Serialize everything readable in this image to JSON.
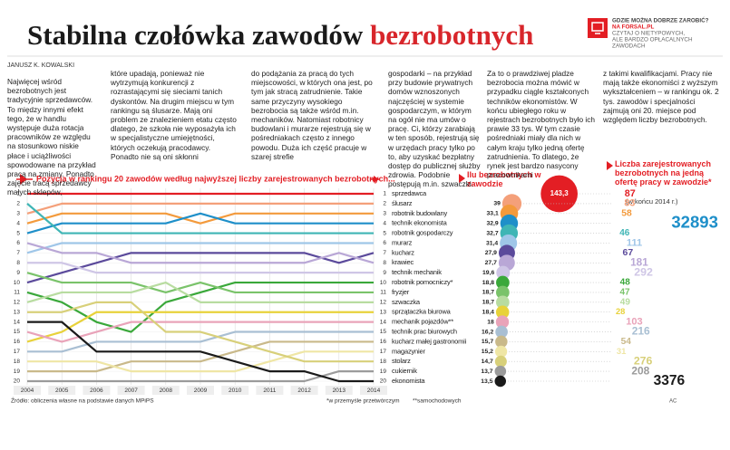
{
  "header": {
    "title_black": "Stabilna czołówka zawodów",
    "title_red": "bezrobotnych"
  },
  "promo": {
    "question": "GDZIE MOŻNA DOBRZE ZAROBIĆ?",
    "site": "NA FORSAL.PL",
    "line1": "CZYTAJ O NIETYPOWYCH,",
    "line2": "ALE BARDZO OPŁACALNYCH",
    "line3": "ZAWODACH"
  },
  "article": {
    "byline": "JANUSZ K. KOWALSKI",
    "columns": [
      "Najwięcej wśród bezrobotnych jest tradycyjnie sprzedawców. To między innymi efekt tego, że w handlu występuje duża rotacja pracowników ze względu na stosunkowo niskie płace i uciążliwości spowodowane na przykład pracą na zmiany. Ponadto zajęcie tracą sprzedawcy małych sklepów,",
      "które upadają, ponieważ nie wytrzymują konkurencji z rozrastającymi się sieciami tanich dyskontów. Na drugim miejscu w tym rankingu są ślusarze. Mają oni problem ze znalezieniem etatu często dlatego, że szkoła nie wyposażyła ich w specjalistyczne umiejętności, których oczekują pracodawcy. Ponadto nie są oni skłonni",
      "do podążania za pracą do tych miejscowości, w których ona jest, po tym jak stracą zatrudnienie. Takie same przyczyny wysokiego bezrobocia są także wśród m.in. mechaników. Natomiast robotnicy budowlani i murarze rejestrują się w pośredniakach często z innego powodu. Duża ich część pracuje w szarej strefie",
      "gospodarki – na przykład przy budowie prywatnych domów wznoszonych najczęściej w systemie gospodarczym, w którym na ogół nie ma umów o pracę. Ci, którzy zarabiają w ten sposób, rejestrują się w urzędach pracy tylko po to, aby uzyskać bezpłatny dostęp do publicznej służby zdrowia. Podobnie postępują m.in. szwaczki.",
      "Za to o prawdziwej pladze bezrobocia można mówić w przypadku ciągle kształconych techników ekonomistów. W końcu ubiegłego roku w rejestrach bezrobotnych było ich prawie 33 tys. W tym czasie pośredniaki miały dla nich w całym kraju tylko jedną ofertę zatrudnienia. To dlatego, że rynek jest bardzo nasycony pracownikami",
      "z takimi kwalifikacjami. Pracy nie mają także ekonomiści z wyższym wykształceniem – w rankingu ok. 2 tys. zawodów i specjalności zajmują oni 20. miejsce pod względem liczby bezrobotnych."
    ]
  },
  "chart_data": [
    {
      "type": "line",
      "title": "Pozycja w rankingu 20 zawodów według najwyższej liczby zarejestrowanych bezrobotnych...",
      "x": [
        2004,
        2005,
        2006,
        2007,
        2008,
        2009,
        2010,
        2011,
        2012,
        2013,
        2014
      ],
      "xlim": [
        2004,
        2014
      ],
      "xticks": [
        2004,
        2005,
        2006,
        2007,
        2008,
        2009,
        2010,
        2011,
        2012,
        2013,
        2014
      ],
      "ylim": [
        20,
        1
      ],
      "yticks": [
        1,
        2,
        3,
        4,
        5,
        6,
        7,
        8,
        9,
        10,
        11,
        12,
        13,
        14,
        15,
        16,
        17,
        18,
        19,
        20
      ],
      "grid": true,
      "series": [
        {
          "name": "sprzedawca",
          "color": "#e31e24",
          "values": [
            1,
            1,
            1,
            1,
            1,
            1,
            1,
            1,
            1,
            1,
            1
          ]
        },
        {
          "name": "ślusarz",
          "color": "#f4a07a",
          "values": [
            3,
            2,
            2,
            2,
            2,
            2,
            2,
            2,
            2,
            2,
            2
          ]
        },
        {
          "name": "robotnik budowlany",
          "color": "#f39a3c",
          "values": [
            4,
            3,
            3,
            3,
            3,
            4,
            3,
            3,
            3,
            3,
            3
          ]
        },
        {
          "name": "technik ekonomista",
          "color": "#1e8fc9",
          "values": [
            5,
            4,
            4,
            4,
            4,
            3,
            4,
            4,
            4,
            4,
            4
          ]
        },
        {
          "name": "robotnik gospodarczy",
          "color": "#3fb5b5",
          "values": [
            2,
            5,
            5,
            5,
            5,
            5,
            5,
            5,
            5,
            5,
            5
          ]
        },
        {
          "name": "murarz",
          "color": "#9fc6e8",
          "values": [
            7,
            6,
            6,
            6,
            6,
            6,
            6,
            6,
            6,
            6,
            6
          ]
        },
        {
          "name": "kucharz",
          "color": "#5b4a9b",
          "values": [
            10,
            9,
            8,
            7,
            7,
            7,
            7,
            7,
            7,
            8,
            7
          ]
        },
        {
          "name": "krawiec",
          "color": "#b9a7d6",
          "values": [
            6,
            7,
            7,
            8,
            8,
            8,
            8,
            8,
            8,
            7,
            8
          ]
        },
        {
          "name": "technik mechanik",
          "color": "#cfc6e6",
          "values": [
            8,
            8,
            9,
            9,
            9,
            9,
            9,
            9,
            9,
            9,
            9
          ]
        },
        {
          "name": "robotnik pomocniczy*",
          "color": "#3aa83a",
          "values": [
            11,
            12,
            14,
            15,
            12,
            11,
            10,
            10,
            10,
            10,
            10
          ]
        },
        {
          "name": "fryzjer",
          "color": "#7ac36a",
          "values": [
            9,
            10,
            10,
            10,
            11,
            10,
            11,
            11,
            11,
            11,
            11
          ]
        },
        {
          "name": "szwaczka",
          "color": "#b8dca0",
          "values": [
            12,
            11,
            11,
            11,
            10,
            12,
            12,
            12,
            12,
            12,
            12
          ]
        },
        {
          "name": "sprzątaczka biurowa",
          "color": "#e8d23a",
          "values": [
            16,
            15,
            13,
            13,
            13,
            13,
            13,
            13,
            13,
            13,
            13
          ]
        },
        {
          "name": "mechanik pojazdów**",
          "color": "#e9a3b9",
          "values": [
            15,
            16,
            15,
            14,
            14,
            14,
            14,
            14,
            14,
            14,
            14
          ]
        },
        {
          "name": "technik prac biurowych",
          "color": "#a9bfd3",
          "values": [
            17,
            17,
            16,
            16,
            16,
            16,
            15,
            15,
            15,
            15,
            15
          ]
        },
        {
          "name": "kucharz małej gastronomii",
          "color": "#c9b98a",
          "values": [
            19,
            19,
            19,
            18,
            18,
            18,
            17,
            16,
            16,
            16,
            16
          ]
        },
        {
          "name": "magazynier",
          "color": "#efe6a5",
          "values": [
            18,
            18,
            18,
            19,
            19,
            19,
            19,
            18,
            17,
            17,
            17
          ]
        },
        {
          "name": "stolarz",
          "color": "#d8d07a",
          "values": [
            13,
            13,
            12,
            12,
            15,
            15,
            16,
            17,
            18,
            18,
            18
          ]
        },
        {
          "name": "cukiernik",
          "color": "#9b9b9b",
          "values": [
            20,
            20,
            20,
            20,
            20,
            20,
            20,
            20,
            20,
            19,
            19
          ]
        },
        {
          "name": "ekonomista",
          "color": "#1a1a1a",
          "values": [
            14,
            14,
            17,
            17,
            17,
            17,
            18,
            19,
            19,
            20,
            20
          ]
        }
      ]
    },
    {
      "type": "bubble",
      "title": "Ilu bezrobotnych w zawodzie",
      "values": [
        143.3,
        39,
        33.1,
        32.9,
        32.7,
        31.4,
        27.9,
        27.7,
        19.6,
        18.8,
        18.7,
        18.7,
        18.4,
        18,
        16.2,
        15.7,
        15.2,
        14.7,
        13.7,
        13.5
      ],
      "value_labels": [
        "143,3",
        "39",
        "33,1",
        "32,9",
        "32,7",
        "31,4",
        "27,9",
        "27,7",
        "19,6",
        "18,8",
        "18,7",
        "18,7",
        "18,4",
        "18",
        "16,2",
        "15,7",
        "15,2",
        "14,7",
        "13,7",
        "13,5"
      ]
    },
    {
      "type": "label",
      "title": "Liczba zarejestrowanych bezrobotnych na jedną ofertę pracy w zawodzie*",
      "subtitle": "(w końcu 2014 r.)",
      "values": [
        87,
        83,
        58,
        32893,
        46,
        111,
        67,
        181,
        292,
        48,
        47,
        49,
        28,
        103,
        216,
        54,
        31,
        276,
        208,
        3376
      ]
    }
  ],
  "footer": {
    "source": "Źródło: obliczenia własne na podstawie danych MPiPS",
    "note1": "*w przemyśle przetwórczym",
    "note2": "**samochodowych",
    "credit": "AC"
  }
}
